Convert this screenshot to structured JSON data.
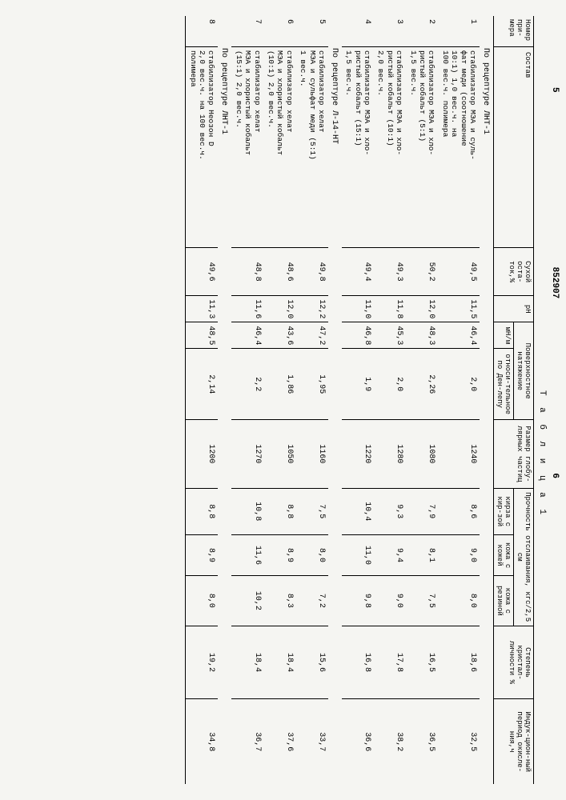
{
  "doc_number": "852907",
  "page_left": "5",
  "page_right": "6",
  "table_label": "Т а б л и ц а  1",
  "headers": {
    "num": "Номер при-мера",
    "composition": "Состав",
    "dry": "Сухой оста-ток,%",
    "ph": "pH",
    "surface": "Поверхностное натяжение",
    "surface_sub1": "мН/м",
    "surface_sub2": "относи-тельное по Ден-лепу",
    "globule": "Размер глобу-лярных частиц",
    "peel": "Прочность отслаивания, кгс/2,5 см",
    "peel1": "кирза с кир-зой",
    "peel2": "кожа с кожей",
    "peel3": "кожа с резиной",
    "cryst": "Степень кристал-личности %",
    "induct": "Индук-цион-ный период окисле-ния,ч"
  },
  "sections": {
    "s1": "По рецептуре ЛНТ-1",
    "s2": "По рецептуре Л-14-НТ",
    "s3": "По рецептуре ЛНТ-1"
  },
  "rows": [
    {
      "n": "1",
      "comp": "стабилизатор МЭА и суль-\nфат меди (соотношение\n10:1) 1,0 вес.ч. на\n100 вес.ч. полимера",
      "dry": "49,5",
      "ph": "11,5",
      "s1": "46,4",
      "s2": "2,0",
      "gl": "1240",
      "p1": "8,6",
      "p2": "9,0",
      "p3": "8,0",
      "cr": "18,6",
      "in": "32,5"
    },
    {
      "n": "2",
      "comp": "стабилизатор МЭА и хло-\nристый кобальт (5:1)\n1,5 вес.ч.",
      "dry": "50,2",
      "ph": "12,0",
      "s1": "48,3",
      "s2": "2,26",
      "gl": "1080",
      "p1": "7,9",
      "p2": "8,1",
      "p3": "7,5",
      "cr": "16,5",
      "in": "36,5"
    },
    {
      "n": "3",
      "comp": "стабилизатор МЭА и хло-\nристый кобальт (10:1)\n2,0 вес.ч.",
      "dry": "49,3",
      "ph": "11,8",
      "s1": "45,3",
      "s2": "2,0",
      "gl": "1280",
      "p1": "9,3",
      "p2": "9,4",
      "p3": "9,0",
      "cr": "17,8",
      "in": "38,2"
    },
    {
      "n": "4",
      "comp": "стабилизатор МЭА и хло-\nристый кобальт (15:1)\n1,5 вес.ч.",
      "dry": "49,4",
      "ph": "11,0",
      "s1": "46,8",
      "s2": "1,9",
      "gl": "1220",
      "p1": "10,4",
      "p2": "11,0",
      "p3": "9,8",
      "cr": "16,8",
      "in": "36,6"
    },
    {
      "n": "5",
      "comp": "стабилизатор хелат\nМЭА и сульфат меди (5:1)\n1 вес.ч.",
      "dry": "49,8",
      "ph": "12,2",
      "s1": "47,2",
      "s2": "1,95",
      "gl": "1160",
      "p1": "7,5",
      "p2": "8,0",
      "p3": "7,2",
      "cr": "15,6",
      "in": "33,7"
    },
    {
      "n": "6",
      "comp": "стабилизатор хелат\nМЭА и хлористый кобальт\n(10:1) 2,0 вес.ч.",
      "dry": "48,6",
      "ph": "12,0",
      "s1": "43,6",
      "s2": "1,86",
      "gl": "1050",
      "p1": "8,8",
      "p2": "8,9",
      "p3": "8,3",
      "cr": "18,4",
      "in": "37,6"
    },
    {
      "n": "7",
      "comp": "стабилизатор хелат\nМЭА и хлористый кобальт\n(15:1) 2,0 вес.ч.",
      "dry": "48,8",
      "ph": "11,6",
      "s1": "46,4",
      "s2": "2,2",
      "gl": "1270",
      "p1": "10,8",
      "p2": "11,6",
      "p3": "10,2",
      "cr": "18,4",
      "in": "36,7"
    },
    {
      "n": "8",
      "comp": "стабилизатор Неозон D\n2,0 вес.ч. на 100 вес.ч.\nполимера",
      "dry": "49,6",
      "ph": "11,3",
      "s1": "48,5",
      "s2": "2,14",
      "gl": "1200",
      "p1": "8,8",
      "p2": "8,9",
      "p3": "8,0",
      "cr": "19,2",
      "in": "34,8"
    }
  ]
}
